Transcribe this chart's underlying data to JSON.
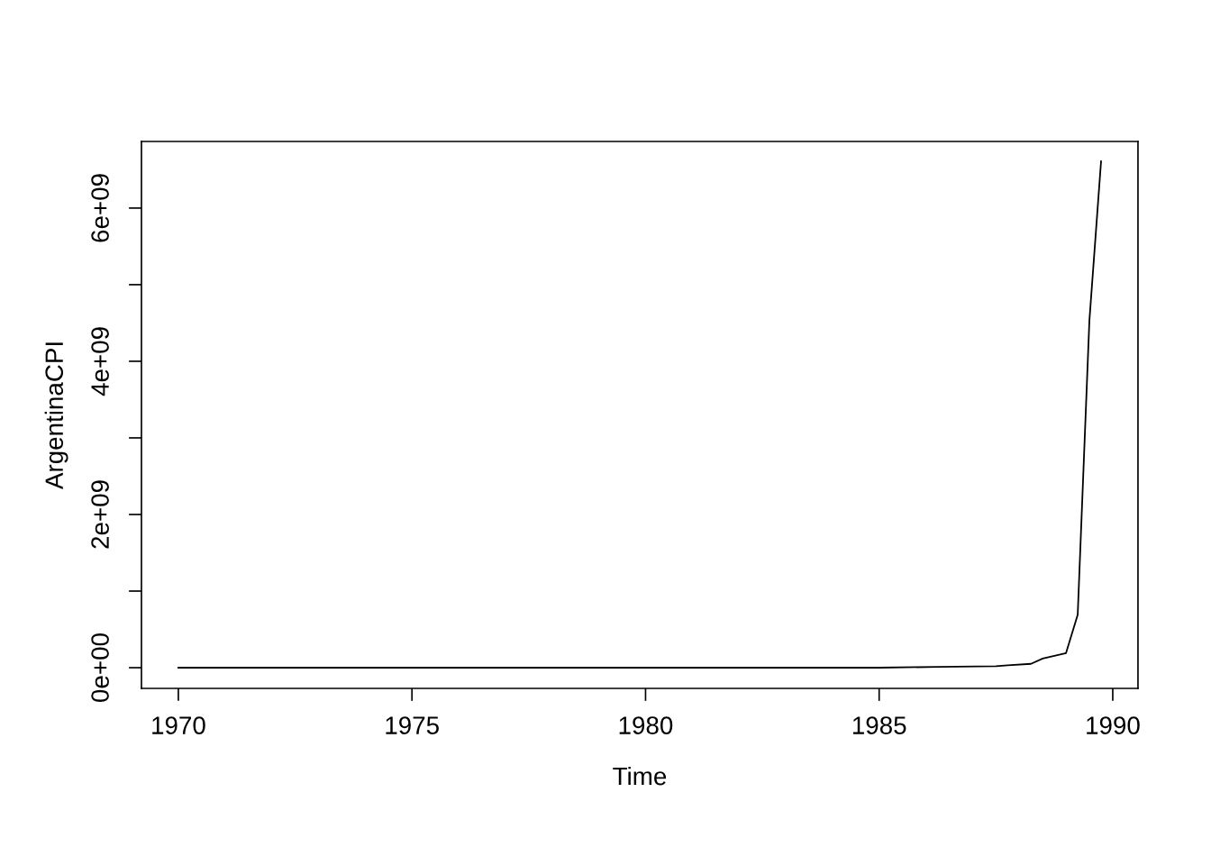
{
  "chart_data": {
    "type": "line",
    "xlabel": "Time",
    "ylabel": "ArgentinaCPI",
    "x": [
      1970,
      1985,
      1986.25,
      1987.5,
      1987.75,
      1988.25,
      1988.5,
      1989,
      1989.25,
      1989.5,
      1989.75
    ],
    "series": [
      {
        "color": "#000000",
        "values": [
          0,
          0,
          10000000,
          20000000,
          30000000,
          50000000,
          120000000,
          190000000,
          690000000,
          4530000000,
          6610000000
        ]
      }
    ],
    "xlim": [
      1969.21,
      1990.54
    ],
    "xticks": [
      1970,
      1975,
      1980,
      1985,
      1990
    ],
    "ylim": [
      -270000000,
      6870000000
    ],
    "yticks": [
      {
        "value": 0,
        "label": "0e+00"
      },
      {
        "value": 1000000000,
        "label": null
      },
      {
        "value": 2000000000,
        "label": "2e+09"
      },
      {
        "value": 3000000000,
        "label": null
      },
      {
        "value": 4000000000,
        "label": "4e+09"
      },
      {
        "value": 5000000000,
        "label": null
      },
      {
        "value": 6000000000,
        "label": "6e+09"
      }
    ],
    "grid": false,
    "marker": "none",
    "line_style": "solid"
  }
}
